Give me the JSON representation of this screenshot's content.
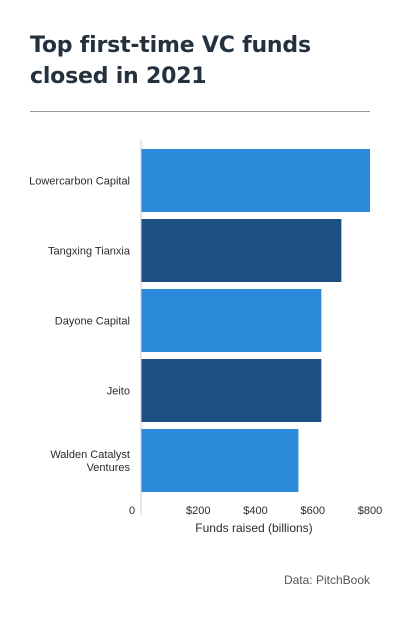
{
  "title": "Top first-time VC funds closed in 2021",
  "source": "Data: PitchBook",
  "colors": {
    "light_bar": "#2b8ad9",
    "dark_bar": "#1c4f82",
    "title": "#24323f",
    "axis_line": "#cccccc"
  },
  "chart_data": {
    "type": "bar",
    "orientation": "horizontal",
    "title": "Top first-time VC funds closed in 2021",
    "xlabel": "Funds raised (billions)",
    "ylabel": "",
    "xlim": [
      0,
      800
    ],
    "x_ticks": [
      {
        "value": 0,
        "label": "0"
      },
      {
        "value": 200,
        "label": "$200"
      },
      {
        "value": 400,
        "label": "$400"
      },
      {
        "value": 600,
        "label": "$600"
      },
      {
        "value": 800,
        "label": "$800"
      }
    ],
    "grid": false,
    "legend": "none",
    "categories": [
      [
        "Lowercarbon Capital"
      ],
      [
        "Tangxing Tianxia"
      ],
      [
        "Dayone Capital"
      ],
      [
        "Jeito"
      ],
      [
        "Walden Catalyst",
        "Ventures"
      ]
    ],
    "values": [
      800,
      700,
      630,
      630,
      550
    ],
    "bar_colors": [
      "#2b8ad9",
      "#1c4f82",
      "#2b8ad9",
      "#1c4f82",
      "#2b8ad9"
    ]
  }
}
